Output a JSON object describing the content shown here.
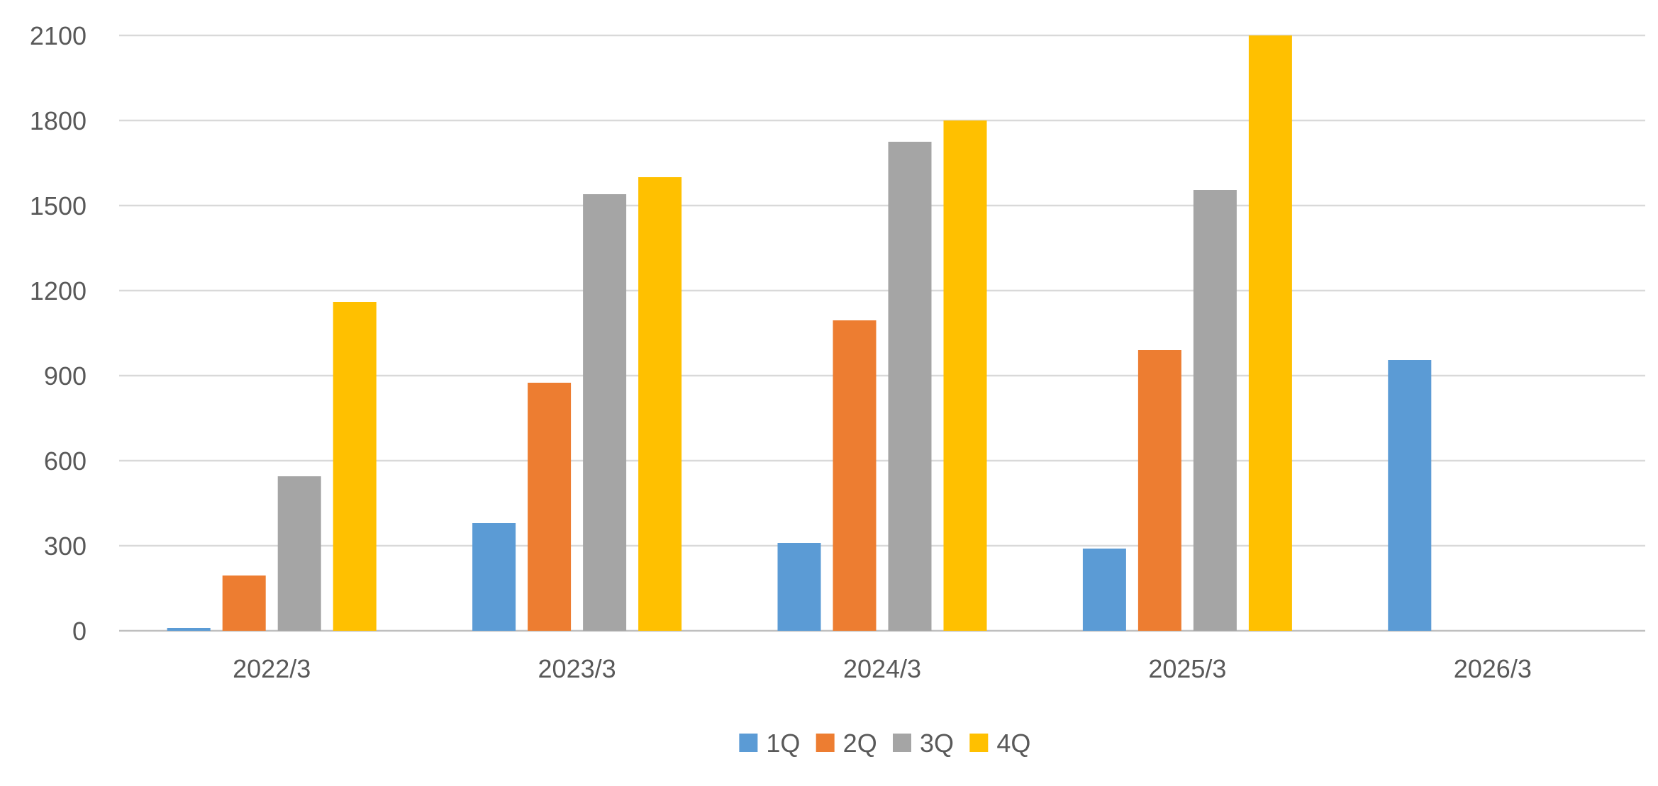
{
  "chart_data": {
    "type": "bar",
    "title": "",
    "xlabel": "",
    "ylabel": "",
    "categories": [
      "2022/3",
      "2023/3",
      "2024/3",
      "2025/3",
      "2026/3"
    ],
    "series": [
      {
        "name": "1Q",
        "color": "#5B9BD5",
        "values": [
          10,
          380,
          310,
          290,
          955
        ]
      },
      {
        "name": "2Q",
        "color": "#ED7D31",
        "values": [
          195,
          875,
          1095,
          990,
          null
        ]
      },
      {
        "name": "3Q",
        "color": "#A5A5A5",
        "values": [
          545,
          1540,
          1725,
          1555,
          null
        ]
      },
      {
        "name": "4Q",
        "color": "#FFC000",
        "values": [
          1160,
          1600,
          1800,
          2100,
          null
        ]
      }
    ],
    "ylim": [
      0,
      2100
    ],
    "yticks": [
      0,
      300,
      600,
      900,
      1200,
      1500,
      1800,
      2100
    ],
    "grid": true,
    "legend_position": "bottom"
  }
}
